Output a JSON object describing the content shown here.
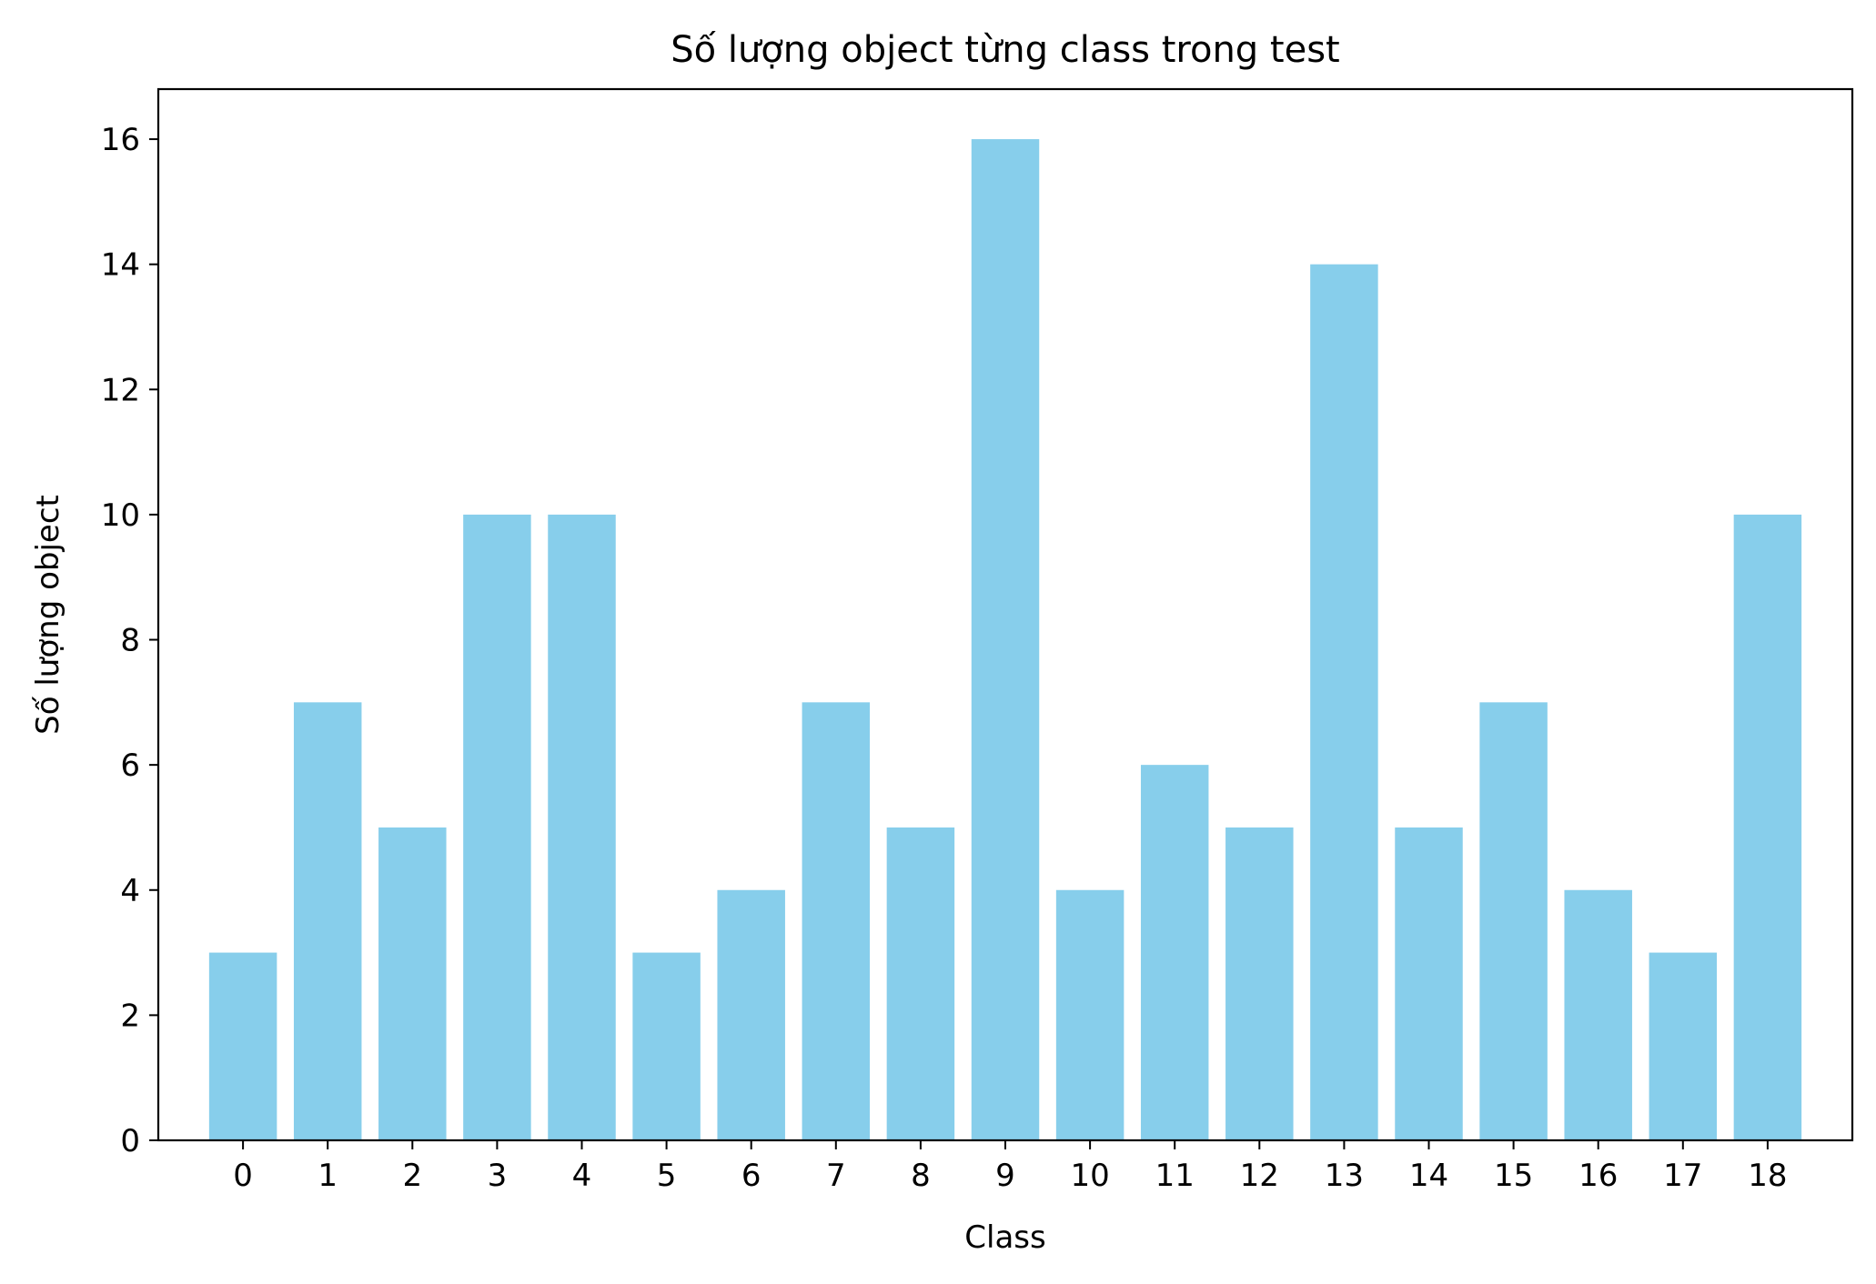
{
  "chart_data": {
    "type": "bar",
    "title": "Số lượng object từng class trong test",
    "xlabel": "Class",
    "ylabel": "Số lượng object",
    "categories": [
      "0",
      "1",
      "2",
      "3",
      "4",
      "5",
      "6",
      "7",
      "8",
      "9",
      "10",
      "11",
      "12",
      "13",
      "14",
      "15",
      "16",
      "17",
      "18"
    ],
    "values": [
      3,
      7,
      5,
      10,
      10,
      3,
      4,
      7,
      5,
      16,
      4,
      6,
      5,
      14,
      5,
      7,
      4,
      3,
      10
    ],
    "ylim": [
      0,
      16.8
    ],
    "yticks": [
      0,
      2,
      4,
      6,
      8,
      10,
      12,
      14,
      16
    ],
    "grid": false,
    "legend": "none",
    "bar_color": "#87ceeb"
  }
}
